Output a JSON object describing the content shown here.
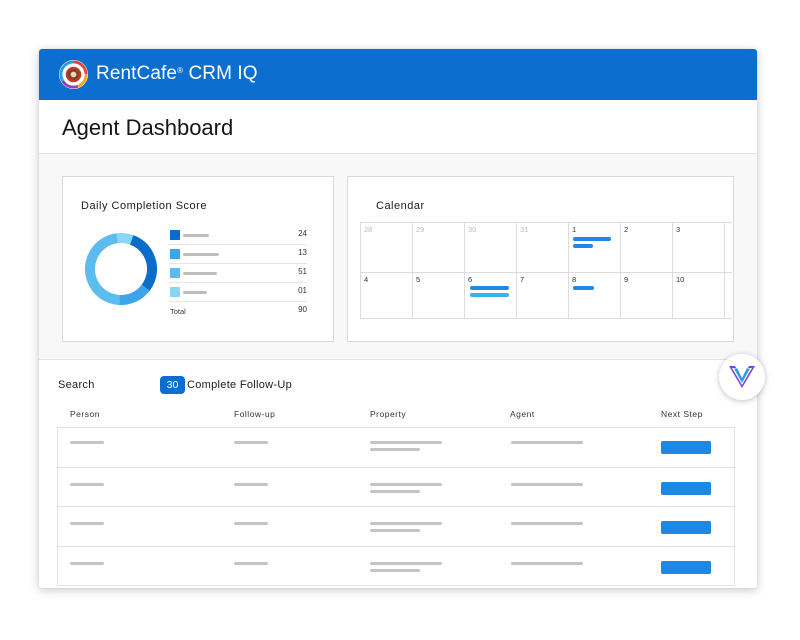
{
  "app": {
    "brand_name": "RentCafe",
    "brand_registered": "®",
    "brand_product": "CRM IQ",
    "icon": "rentcafe-logo-icon",
    "colors": {
      "brand_blue": "#0c6fcf",
      "accent_blue": "#1e88e5"
    }
  },
  "page": {
    "title": "Agent Dashboard"
  },
  "score_card": {
    "title": "Daily Completion Score",
    "legend": [
      {
        "color": "#0b6dc9",
        "value": "24"
      },
      {
        "color": "#3ea4ea",
        "value": "13"
      },
      {
        "color": "#5cbcf0",
        "value": "51"
      },
      {
        "color": "#8ad6f7",
        "value": "01"
      }
    ],
    "total_label": "Total",
    "total_value": "90"
  },
  "calendar": {
    "title": "Calendar",
    "week1": [
      "28",
      "29",
      "30",
      "31",
      "1",
      "2",
      "3"
    ],
    "week2": [
      "4",
      "5",
      "6",
      "7",
      "8",
      "9",
      "10"
    ]
  },
  "toolbar": {
    "search_label": "Search",
    "count": "30",
    "filter_label": "Complete Follow-Up"
  },
  "table": {
    "columns": {
      "person": "Person",
      "followup": "Follow-up",
      "property": "Property",
      "agent": "Agent",
      "next_step": "Next Step"
    },
    "row_count": 4
  },
  "fab": {
    "icon": "yardi-chevron-logo-icon"
  }
}
